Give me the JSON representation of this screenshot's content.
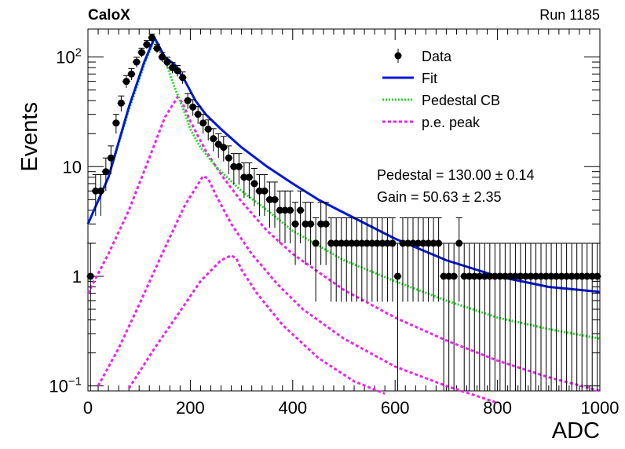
{
  "chart_data": {
    "type": "scatter",
    "title": "",
    "header_left": "CaloX",
    "header_right": "Run 1185",
    "xlabel": "ADC",
    "ylabel": "Events",
    "xlim": [
      0,
      1000
    ],
    "ylim": [
      0.09,
      180
    ],
    "yscale": "log",
    "x_ticks": [
      "0",
      "200",
      "400",
      "600",
      "800",
      "1000"
    ],
    "y_ticks": [
      {
        "value": 0.1,
        "base": "10",
        "exp": "−1"
      },
      {
        "value": 1,
        "base": "1",
        "exp": ""
      },
      {
        "value": 10,
        "base": "10",
        "exp": ""
      },
      {
        "value": 100,
        "base": "10",
        "exp": "2"
      }
    ],
    "legend_position": "top-right",
    "legend": [
      {
        "label": "Data",
        "style": "marker",
        "color": "#000000"
      },
      {
        "label": "Fit",
        "style": "line",
        "color": "#0019d6"
      },
      {
        "label": "Pedestal CB",
        "style": "dotted",
        "color": "#22dd22"
      },
      {
        "label": "p.e. peak",
        "style": "dashed",
        "color": "#ee22ee"
      }
    ],
    "annotations": [
      {
        "text": "Pedestal = 130.00",
        "pm": "±",
        "err": "0.14"
      },
      {
        "text": "Gain = 50.63",
        "pm": "±",
        "err": "2.35"
      }
    ],
    "colors": {
      "data": "#000000",
      "fit": "#0019d6",
      "pedestal": "#22dd22",
      "pe_peak": "#ee22ee"
    },
    "series": [
      {
        "name": "Data",
        "kind": "points",
        "x": [
          5,
          15,
          25,
          35,
          45,
          55,
          65,
          75,
          85,
          95,
          105,
          115,
          125,
          135,
          145,
          155,
          165,
          175,
          185,
          195,
          205,
          215,
          225,
          235,
          245,
          255,
          265,
          275,
          285,
          295,
          305,
          315,
          325,
          335,
          345,
          355,
          365,
          375,
          385,
          395,
          405,
          415,
          425,
          435,
          445,
          455,
          465,
          475,
          485,
          495,
          505,
          515,
          525,
          535,
          545,
          555,
          565,
          575,
          585,
          595,
          605,
          615,
          625,
          635,
          645,
          655,
          665,
          675,
          685,
          695,
          705,
          715,
          725,
          735,
          745,
          755,
          765,
          775,
          785,
          795,
          805,
          815,
          825,
          835,
          845,
          855,
          865,
          875,
          885,
          895,
          905,
          915,
          925,
          935,
          945,
          955,
          965,
          975,
          985,
          995
        ],
        "y": [
          1,
          6,
          6,
          9,
          12,
          25,
          38,
          60,
          70,
          90,
          110,
          130,
          150,
          120,
          100,
          90,
          80,
          75,
          65,
          40,
          35,
          30,
          25,
          22,
          18,
          16,
          15,
          12,
          10,
          10,
          8,
          8,
          7,
          6,
          6,
          5,
          5,
          4,
          4,
          4,
          3,
          4,
          3,
          3,
          2,
          3,
          3,
          2,
          2,
          2,
          2,
          2,
          2,
          2,
          2,
          2,
          2,
          2,
          2,
          2,
          1,
          2,
          2,
          2,
          2,
          2,
          2,
          2,
          2,
          1,
          1,
          1,
          2,
          1,
          1,
          1,
          1,
          1,
          1,
          1,
          1,
          1,
          1,
          1,
          1,
          1,
          1,
          1,
          1,
          1,
          1,
          1,
          1,
          1,
          1,
          1,
          1,
          1,
          1,
          1
        ]
      },
      {
        "name": "Fit",
        "kind": "line",
        "x": [
          0,
          40,
          80,
          110,
          130,
          150,
          170,
          190,
          210,
          230,
          260,
          300,
          350,
          400,
          450,
          500,
          600,
          700,
          800,
          900,
          1000
        ],
        "y": [
          3,
          8,
          35,
          90,
          150,
          100,
          85,
          60,
          40,
          30,
          22,
          15,
          10,
          7,
          5,
          3.8,
          2.2,
          1.4,
          1.0,
          0.8,
          0.72
        ]
      },
      {
        "name": "Pedestal CB",
        "kind": "line",
        "x": [
          0,
          40,
          80,
          110,
          130,
          150,
          160,
          170,
          180,
          190,
          200,
          220,
          250,
          300,
          350,
          400,
          500,
          600,
          700,
          800,
          900,
          1000
        ],
        "y": [
          3,
          8,
          33,
          85,
          148,
          95,
          70,
          52,
          40,
          30,
          22,
          15,
          10,
          6,
          4,
          2.6,
          1.4,
          0.9,
          0.6,
          0.42,
          0.33,
          0.27
        ]
      },
      {
        "name": "p.e. peak 1",
        "kind": "line",
        "x": [
          0,
          40,
          80,
          120,
          150,
          175,
          185,
          200,
          230,
          260,
          300,
          350,
          400,
          500,
          600,
          700,
          800,
          900,
          1000
        ],
        "y": [
          0.7,
          1.6,
          4,
          12,
          28,
          43,
          38,
          26,
          14,
          8.5,
          4.8,
          2.6,
          1.6,
          0.75,
          0.42,
          0.26,
          0.17,
          0.12,
          0.09
        ]
      },
      {
        "name": "p.e. peak 2",
        "kind": "line",
        "x": [
          20,
          60,
          100,
          150,
          190,
          225,
          235,
          250,
          280,
          320,
          370,
          420,
          500,
          600,
          700,
          800
        ],
        "y": [
          0.1,
          0.22,
          0.55,
          1.8,
          4.5,
          8.2,
          7.8,
          5.5,
          3.0,
          1.6,
          0.85,
          0.5,
          0.27,
          0.15,
          0.1,
          0.07
        ]
      },
      {
        "name": "p.e. peak 3",
        "kind": "line",
        "x": [
          80,
          130,
          180,
          220,
          260,
          280,
          290,
          300,
          330,
          380,
          450,
          520,
          580
        ],
        "y": [
          0.095,
          0.22,
          0.48,
          0.9,
          1.4,
          1.55,
          1.45,
          1.15,
          0.7,
          0.36,
          0.18,
          0.11,
          0.085
        ]
      }
    ]
  }
}
